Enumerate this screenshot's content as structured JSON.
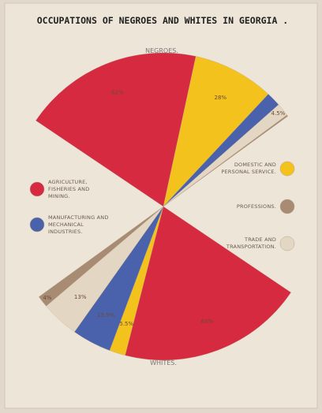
{
  "chart_data": {
    "type": "pie",
    "title": "OCCUPATIONS OF NEGROES AND WHITES IN GEORGIA .",
    "categories": [
      "AGRICULTURE, FISHERIES AND MINING.",
      "DOMESTIC AND PERSONAL SERVICE.",
      "MANUFACTURING AND MECHANICAL INDUSTRIES.",
      "TRADE AND TRANSPORTATION.",
      "PROFESSIONS."
    ],
    "colors": [
      "#d62a40",
      "#f4c21c",
      "#4a62ab",
      "#e3d7c4",
      "#a88b73"
    ],
    "series": [
      {
        "name": "NEGROES.",
        "values": [
          62,
          28,
          5,
          4.5,
          0.5
        ],
        "value_labels": [
          "62%",
          "28%",
          null,
          "4.5%",
          null
        ]
      },
      {
        "name": "WHITES.",
        "values": [
          64,
          5.5,
          13.5,
          13,
          4
        ],
        "value_labels": [
          "64%",
          "5.5%",
          "13.5%",
          "13%",
          "4%"
        ]
      }
    ]
  }
}
